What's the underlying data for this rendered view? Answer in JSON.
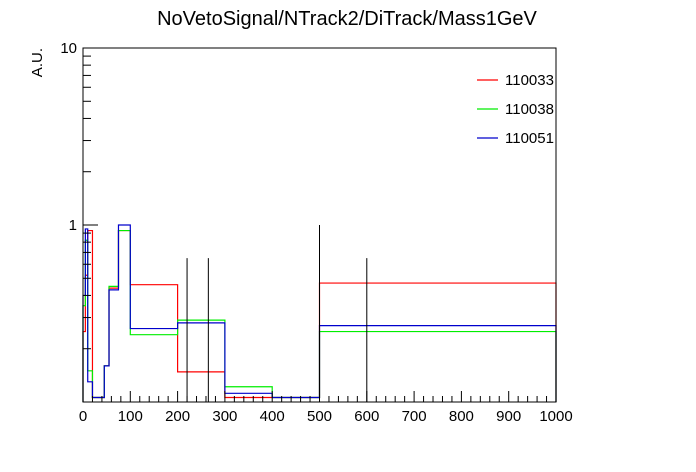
{
  "chart_data": {
    "type": "line",
    "title": "NoVetoSignal/NTrack2/DiTrack/Mass1GeV",
    "xlabel": "",
    "ylabel": "A.U.",
    "xlim": [
      0,
      1000
    ],
    "ylim": [
      0.1,
      10
    ],
    "yscale": "log",
    "grid": false,
    "legend_position": "top-right",
    "x_ticks": [
      "0",
      "100",
      "200",
      "300",
      "400",
      "500",
      "600",
      "700",
      "800",
      "900",
      "1000"
    ],
    "y_ticks": [
      "1",
      "10"
    ],
    "series": [
      {
        "name": "110033",
        "color": "#ff0000",
        "bins": [
          {
            "lo": 0,
            "hi": 5,
            "y": 0.25
          },
          {
            "lo": 5,
            "hi": 10,
            "y": 0.52
          },
          {
            "lo": 10,
            "hi": 20,
            "y": 0.93
          },
          {
            "lo": 20,
            "hi": 45,
            "y": 0.106
          },
          {
            "lo": 45,
            "hi": 55,
            "y": 0.16
          },
          {
            "lo": 55,
            "hi": 75,
            "y": 0.44
          },
          {
            "lo": 75,
            "hi": 100,
            "y": 0.93
          },
          {
            "lo": 100,
            "hi": 200,
            "y": 0.46
          },
          {
            "lo": 200,
            "hi": 300,
            "y": 0.148
          },
          {
            "lo": 300,
            "hi": 400,
            "y": 0.106
          },
          {
            "lo": 400,
            "hi": 500,
            "y": 0.106
          },
          {
            "lo": 500,
            "hi": 1000,
            "y": 0.47
          }
        ]
      },
      {
        "name": "110038",
        "color": "#00ee00",
        "bins": [
          {
            "lo": 0,
            "hi": 5,
            "y": 0.35
          },
          {
            "lo": 5,
            "hi": 10,
            "y": 0.82
          },
          {
            "lo": 10,
            "hi": 20,
            "y": 0.15
          },
          {
            "lo": 20,
            "hi": 45,
            "y": 0.106
          },
          {
            "lo": 45,
            "hi": 55,
            "y": 0.16
          },
          {
            "lo": 55,
            "hi": 75,
            "y": 0.45
          },
          {
            "lo": 75,
            "hi": 100,
            "y": 0.93
          },
          {
            "lo": 100,
            "hi": 200,
            "y": 0.24
          },
          {
            "lo": 200,
            "hi": 300,
            "y": 0.29
          },
          {
            "lo": 300,
            "hi": 400,
            "y": 0.122
          },
          {
            "lo": 400,
            "hi": 500,
            "y": 0.106
          },
          {
            "lo": 500,
            "hi": 1000,
            "y": 0.25
          }
        ]
      },
      {
        "name": "110051",
        "color": "#0000cc",
        "bins": [
          {
            "lo": 0,
            "hi": 5,
            "y": 0.4
          },
          {
            "lo": 5,
            "hi": 10,
            "y": 0.95
          },
          {
            "lo": 10,
            "hi": 20,
            "y": 0.13
          },
          {
            "lo": 20,
            "hi": 45,
            "y": 0.106
          },
          {
            "lo": 45,
            "hi": 55,
            "y": 0.16
          },
          {
            "lo": 55,
            "hi": 75,
            "y": 0.43
          },
          {
            "lo": 75,
            "hi": 100,
            "y": 1.0
          },
          {
            "lo": 100,
            "hi": 200,
            "y": 0.26
          },
          {
            "lo": 200,
            "hi": 300,
            "y": 0.28
          },
          {
            "lo": 300,
            "hi": 400,
            "y": 0.112
          },
          {
            "lo": 400,
            "hi": 500,
            "y": 0.106
          },
          {
            "lo": 500,
            "hi": 1000,
            "y": 0.27
          }
        ]
      }
    ],
    "error_bars": [
      {
        "x": 220,
        "lo": 0.1,
        "hi": 0.65
      },
      {
        "x": 265,
        "lo": 0.1,
        "hi": 0.65
      },
      {
        "x": 600,
        "lo": 0.1,
        "hi": 0.65
      },
      {
        "x": 500,
        "lo": 0.1,
        "hi": 1.0
      }
    ]
  }
}
